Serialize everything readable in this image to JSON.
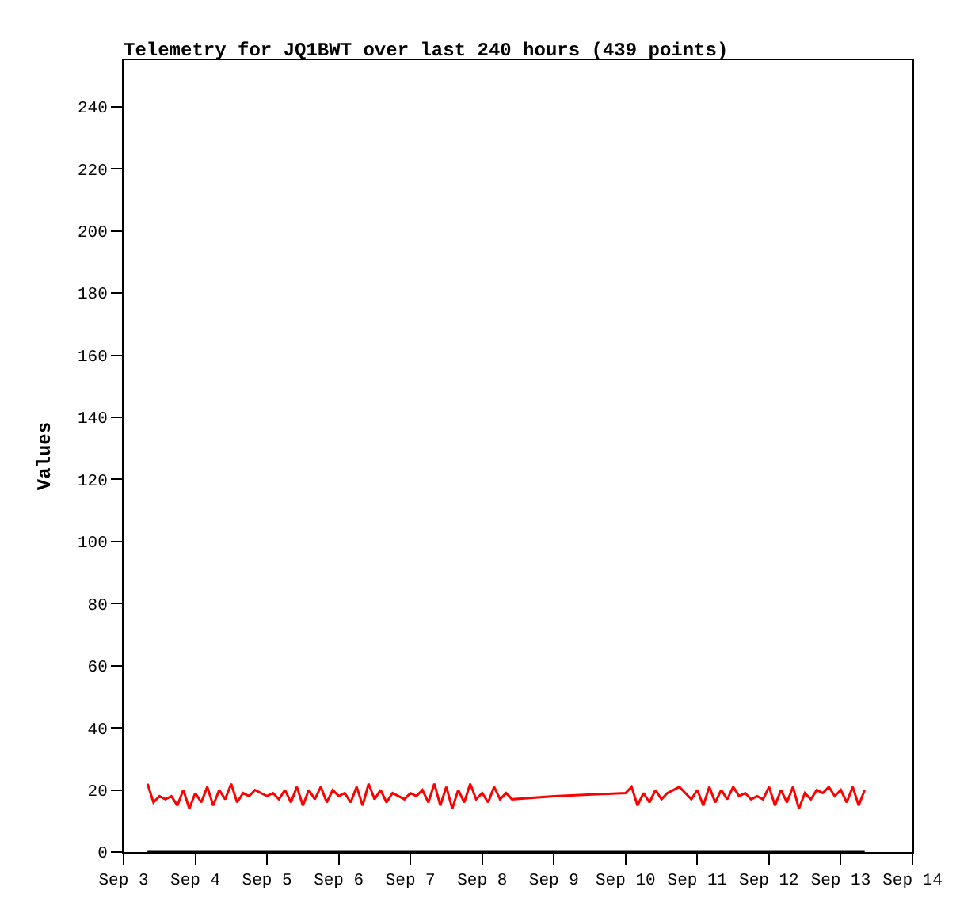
{
  "chart_data": {
    "type": "line",
    "title": "Telemetry for JQ1BWT over last 240 hours (439 points)",
    "ylabel": "Values",
    "xlim": [
      "--09-03",
      "--09-14"
    ],
    "xticks": [
      {
        "value": "--09-03",
        "label": "Sep 3"
      },
      {
        "value": "--09-04",
        "label": "Sep 4"
      },
      {
        "value": "--09-05",
        "label": "Sep 5"
      },
      {
        "value": "--09-06",
        "label": "Sep 6"
      },
      {
        "value": "--09-07",
        "label": "Sep 7"
      },
      {
        "value": "--09-08",
        "label": "Sep 8"
      },
      {
        "value": "--09-09",
        "label": "Sep 9"
      },
      {
        "value": "--09-10",
        "label": "Sep 10"
      },
      {
        "value": "--09-11",
        "label": "Sep 11"
      },
      {
        "value": "--09-12",
        "label": "Sep 12"
      },
      {
        "value": "--09-13",
        "label": "Sep 13"
      },
      {
        "value": "--09-14",
        "label": "Sep 14"
      }
    ],
    "ylim": [
      0,
      255
    ],
    "yticks": [
      0,
      20,
      40,
      60,
      80,
      100,
      120,
      140,
      160,
      180,
      200,
      220,
      240
    ],
    "grid": false,
    "marker": "none",
    "line_style": "solid",
    "series": [
      {
        "color": "#ff0000",
        "x": [
          "--09-03T08:00",
          "--09-03T10:00",
          "--09-03T12:00",
          "--09-03T14:00",
          "--09-03T16:00",
          "--09-03T18:00",
          "--09-03T20:00",
          "--09-03T22:00",
          "--09-04T00:00",
          "--09-04T02:00",
          "--09-04T04:00",
          "--09-04T06:00",
          "--09-04T08:00",
          "--09-04T10:00",
          "--09-04T12:00",
          "--09-04T14:00",
          "--09-04T16:00",
          "--09-04T18:00",
          "--09-04T20:00",
          "--09-04T22:00",
          "--09-05T00:00",
          "--09-05T02:00",
          "--09-05T04:00",
          "--09-05T06:00",
          "--09-05T08:00",
          "--09-05T10:00",
          "--09-05T12:00",
          "--09-05T14:00",
          "--09-05T16:00",
          "--09-05T18:00",
          "--09-05T20:00",
          "--09-05T22:00",
          "--09-06T00:00",
          "--09-06T02:00",
          "--09-06T04:00",
          "--09-06T06:00",
          "--09-06T08:00",
          "--09-06T10:00",
          "--09-06T12:00",
          "--09-06T14:00",
          "--09-06T16:00",
          "--09-06T18:00",
          "--09-06T20:00",
          "--09-06T22:00",
          "--09-07T00:00",
          "--09-07T02:00",
          "--09-07T04:00",
          "--09-07T06:00",
          "--09-07T08:00",
          "--09-07T10:00",
          "--09-07T12:00",
          "--09-07T14:00",
          "--09-07T16:00",
          "--09-07T18:00",
          "--09-07T20:00",
          "--09-07T22:00",
          "--09-08T00:00",
          "--09-08T02:00",
          "--09-08T04:00",
          "--09-08T06:00",
          "--09-08T08:00",
          "--09-08T10:00",
          "--09-09T00:00",
          "--09-10T00:00",
          "--09-10T02:00",
          "--09-10T04:00",
          "--09-10T06:00",
          "--09-10T08:00",
          "--09-10T10:00",
          "--09-10T12:00",
          "--09-10T14:00",
          "--09-10T16:00",
          "--09-10T18:00",
          "--09-10T20:00",
          "--09-10T22:00",
          "--09-11T00:00",
          "--09-11T02:00",
          "--09-11T04:00",
          "--09-11T06:00",
          "--09-11T08:00",
          "--09-11T10:00",
          "--09-11T12:00",
          "--09-11T14:00",
          "--09-11T16:00",
          "--09-11T18:00",
          "--09-11T20:00",
          "--09-11T22:00",
          "--09-12T00:00",
          "--09-12T02:00",
          "--09-12T04:00",
          "--09-12T06:00",
          "--09-12T08:00",
          "--09-12T10:00",
          "--09-12T12:00",
          "--09-12T14:00",
          "--09-12T16:00",
          "--09-12T18:00",
          "--09-12T20:00",
          "--09-12T22:00",
          "--09-13T00:00",
          "--09-13T02:00",
          "--09-13T04:00",
          "--09-13T06:00",
          "--09-13T08:00"
        ],
        "values": [
          22,
          16,
          18,
          17,
          18,
          15,
          20,
          14,
          19,
          16,
          21,
          15,
          20,
          17,
          22,
          16,
          19,
          18,
          20,
          19,
          18,
          19,
          17,
          20,
          16,
          21,
          15,
          20,
          17,
          21,
          16,
          20,
          18,
          19,
          16,
          21,
          15,
          22,
          17,
          20,
          16,
          19,
          18,
          17,
          19,
          18,
          20,
          16,
          22,
          15,
          21,
          14,
          20,
          16,
          22,
          17,
          19,
          16,
          21,
          17,
          19,
          17,
          18,
          19,
          21,
          15,
          19,
          16,
          20,
          17,
          19,
          20,
          21,
          19,
          17,
          20,
          15,
          21,
          16,
          20,
          17,
          21,
          18,
          19,
          17,
          18,
          17,
          21,
          15,
          20,
          16,
          21,
          14,
          19,
          17,
          20,
          19,
          21,
          18,
          20,
          16,
          21,
          15,
          20
        ]
      },
      {
        "color": "#000000",
        "x": [
          "--09-03T08:00",
          "--09-13T08:00"
        ],
        "values": [
          0,
          0
        ]
      }
    ]
  }
}
